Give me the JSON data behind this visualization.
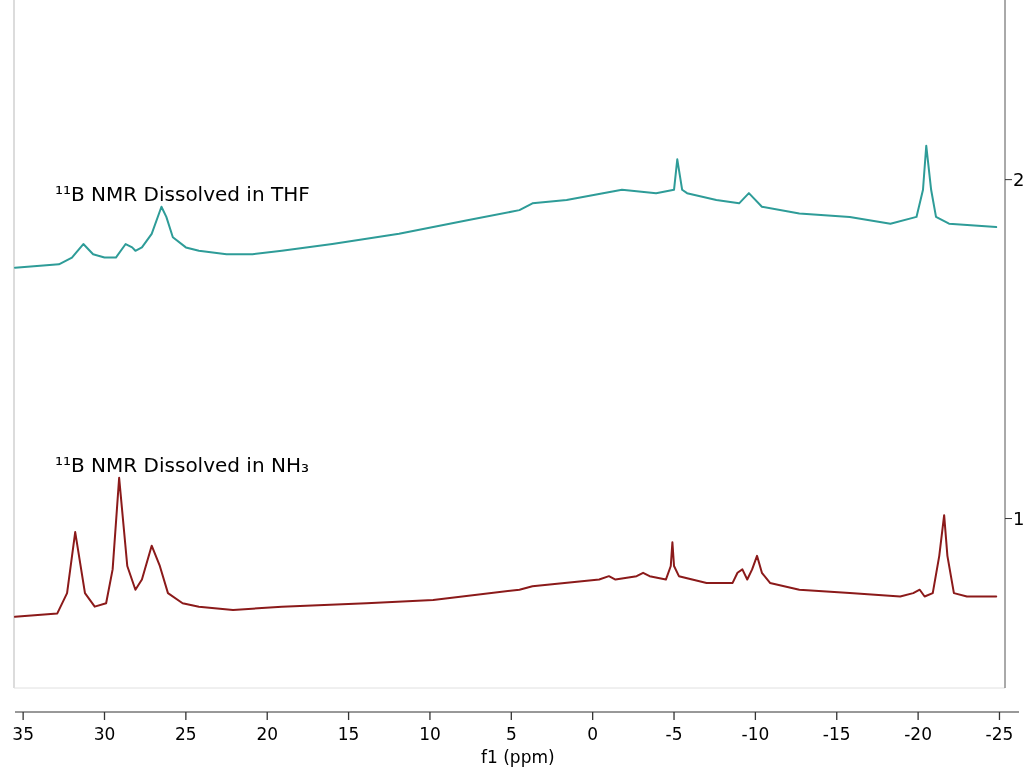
{
  "chart_data": {
    "type": "line",
    "xlabel": "f1 (ppm)",
    "xlim": [
      35.5,
      -26.2
    ],
    "xticks": [
      35,
      30,
      25,
      20,
      15,
      10,
      5,
      0,
      -5,
      -10,
      -15,
      -20,
      -25
    ],
    "ylim": [
      0.5,
      2.53
    ],
    "yticks": [
      1,
      2
    ],
    "grid": false,
    "legend": false,
    "marker": "none",
    "line_style": "solid",
    "series": [
      {
        "name": "¹¹B NMR Dissolved in NH₃",
        "color": "#8b1a1a",
        "x": [
          35.5,
          32.9,
          32.3,
          31.8,
          31.2,
          30.6,
          29.9,
          29.5,
          29.1,
          28.6,
          28.1,
          27.7,
          27.1,
          26.6,
          26.1,
          25.2,
          24.2,
          22.1,
          19.1,
          13.9,
          9.8,
          4.5,
          3.7,
          -0.4,
          -1.0,
          -1.4,
          -2.7,
          -3.1,
          -3.5,
          -4.5,
          -4.8,
          -4.9,
          -5.0,
          -5.3,
          -7.0,
          -8.6,
          -8.9,
          -9.2,
          -9.5,
          -9.8,
          -10.1,
          -10.4,
          -10.9,
          -12.7,
          -15.8,
          -18.9,
          -19.7,
          -20.1,
          -20.4,
          -20.9,
          -21.3,
          -21.6,
          -21.8,
          -22.2,
          -23.0,
          -24.8
        ],
        "values": [
          0.71,
          0.72,
          0.78,
          0.96,
          0.78,
          0.74,
          0.75,
          0.85,
          1.12,
          0.86,
          0.79,
          0.82,
          0.92,
          0.86,
          0.78,
          0.75,
          0.74,
          0.73,
          0.74,
          0.75,
          0.76,
          0.79,
          0.8,
          0.82,
          0.83,
          0.82,
          0.83,
          0.84,
          0.83,
          0.82,
          0.86,
          0.93,
          0.86,
          0.83,
          0.81,
          0.81,
          0.84,
          0.85,
          0.82,
          0.85,
          0.89,
          0.84,
          0.81,
          0.79,
          0.78,
          0.77,
          0.78,
          0.79,
          0.77,
          0.78,
          0.89,
          1.01,
          0.89,
          0.78,
          0.77,
          0.77
        ]
      },
      {
        "name": "¹¹B NMR Dissolved in THF",
        "color": "#2e9c98",
        "x": [
          35.5,
          32.8,
          32.0,
          31.3,
          30.7,
          30.0,
          29.3,
          28.7,
          28.3,
          28.1,
          27.7,
          27.1,
          26.5,
          26.2,
          25.8,
          25.0,
          24.2,
          22.5,
          20.9,
          19.1,
          16.0,
          11.9,
          7.7,
          4.5,
          3.7,
          1.6,
          -1.8,
          -3.9,
          -5.0,
          -5.2,
          -5.5,
          -5.8,
          -7.6,
          -9.0,
          -9.6,
          -10.4,
          -12.7,
          -15.8,
          -18.3,
          -19.9,
          -20.3,
          -20.5,
          -20.8,
          -21.1,
          -21.9,
          -24.8
        ],
        "values": [
          1.74,
          1.75,
          1.77,
          1.81,
          1.78,
          1.77,
          1.77,
          1.81,
          1.8,
          1.79,
          1.8,
          1.84,
          1.92,
          1.89,
          1.83,
          1.8,
          1.79,
          1.78,
          1.78,
          1.79,
          1.81,
          1.84,
          1.88,
          1.91,
          1.93,
          1.94,
          1.97,
          1.96,
          1.97,
          2.06,
          1.97,
          1.96,
          1.94,
          1.93,
          1.96,
          1.92,
          1.9,
          1.89,
          1.87,
          1.89,
          1.97,
          2.1,
          1.97,
          1.89,
          1.87,
          1.86
        ]
      }
    ]
  }
}
